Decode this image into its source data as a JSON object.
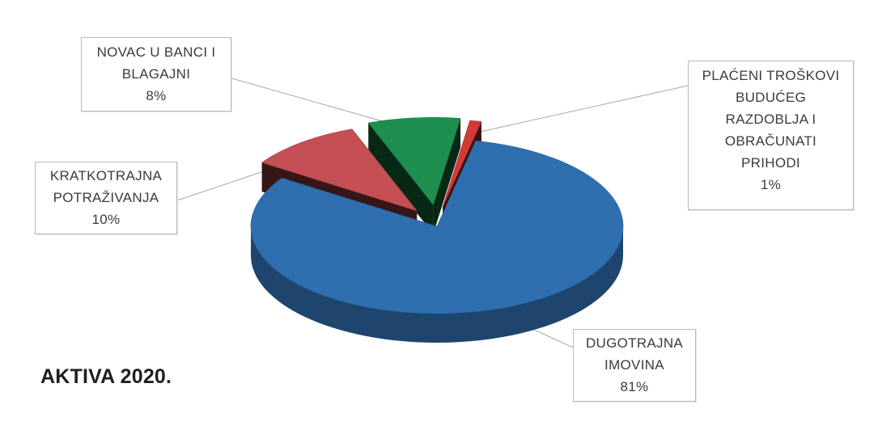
{
  "chart_data": {
    "type": "pie",
    "title": "AKTIVA 2020.",
    "style": "3d-exploded",
    "slices": [
      {
        "label_lines": [
          "DUGOTRAJNA",
          "IMOVINA"
        ],
        "percent_label": "81%",
        "value": 81,
        "color": "#2f6faf"
      },
      {
        "label_lines": [
          "KRATKOTRAJNA",
          "POTRAŽIVANJA"
        ],
        "percent_label": "10%",
        "value": 10,
        "color": "#c44f54"
      },
      {
        "label_lines": [
          "NOVAC U BANCI I",
          "BLAGAJNI"
        ],
        "percent_label": "8%",
        "value": 8,
        "color": "#1e8f4e"
      },
      {
        "label_lines": [
          "PLAĆENI TROŠKOVI",
          "BUDUĆEG",
          "RAZDOBLJA I",
          "OBRAČUNATI",
          "PRIHODI"
        ],
        "percent_label": "1%",
        "value": 1,
        "color": "#d03b36"
      }
    ]
  }
}
